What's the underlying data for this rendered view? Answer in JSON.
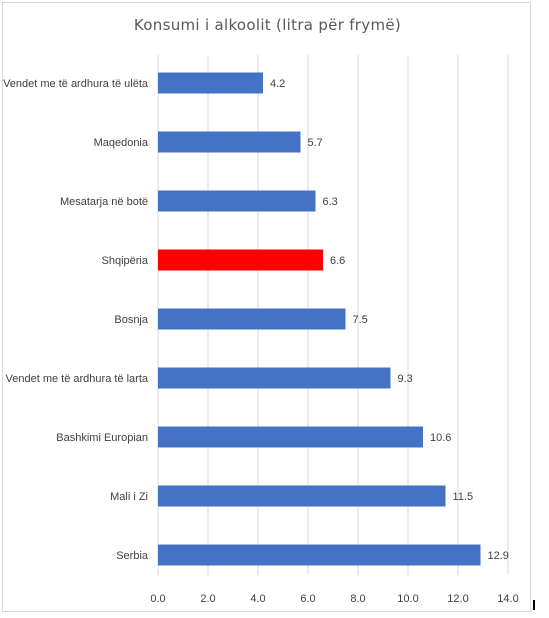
{
  "chart_data": {
    "type": "bar",
    "orientation": "horizontal",
    "title": "Konsumi i alkoolit  (litra për frymë)",
    "xlabel": "",
    "ylabel": "",
    "xlim": [
      0,
      14
    ],
    "ticks": [
      0,
      2,
      4,
      6,
      8,
      10,
      12,
      14
    ],
    "tick_labels": [
      "0.0",
      "2.0",
      "4.0",
      "6.0",
      "8.0",
      "10.0",
      "12.0",
      "14.0"
    ],
    "grid": "vertical",
    "categories": [
      "Vendet me të ardhura të ulëta",
      "Maqedonia",
      "Mesatarja në botë",
      "Shqipëria",
      "Bosnja",
      "Vendet me të ardhura të larta",
      "Bashkimi Europian",
      "Mali i Zi",
      "Serbia"
    ],
    "values": [
      4.2,
      5.7,
      6.3,
      6.6,
      7.5,
      9.3,
      10.6,
      11.5,
      12.9
    ],
    "value_labels": [
      "4.2",
      "5.7",
      "6.3",
      "6.6",
      "7.5",
      "9.3",
      "10.6",
      "11.5",
      "12.9"
    ],
    "colors": {
      "default": "#4472c4",
      "highlight": "#ff0000",
      "grid": "#d9d9d9"
    },
    "highlight_index": 3
  }
}
